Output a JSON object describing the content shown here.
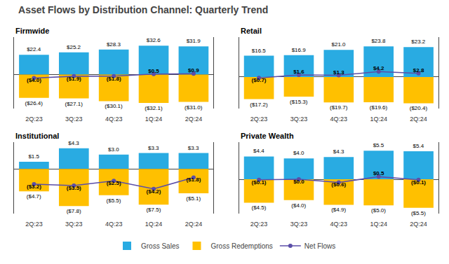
{
  "title": "Asset Flows by Distribution Channel: Quarterly Trend",
  "legend": "bottom",
  "chart_data": [
    {
      "type": "bar",
      "title": "Firmwide",
      "categories": [
        "2Q:23",
        "3Q:23",
        "4Q:23",
        "1Q:24",
        "2Q:24"
      ],
      "ylim": [
        -38.52,
        42.38
      ],
      "grid": false,
      "tick_labels": "x",
      "data_labels": true,
      "series": [
        {
          "name": "Gross Sales",
          "color": "#29ABE2",
          "values": [
            22.4,
            25.2,
            28.3,
            32.6,
            31.9
          ],
          "value_labels": [
            "$22.4",
            "$25.2",
            "$28.3",
            "$32.6",
            "$31.9"
          ]
        },
        {
          "name": "Gross Redemptions",
          "color": "#FFC000",
          "values": [
            -26.4,
            -27.1,
            -30.1,
            -32.1,
            -31.0
          ],
          "value_labels": [
            "($26.4)",
            "($27.1)",
            "($30.1)",
            "($32.1)",
            "($31.0)"
          ]
        },
        {
          "name": "Net Flows",
          "type": "line",
          "marker": "circle",
          "color": "#5B4EA8",
          "values": [
            -4.0,
            -1.9,
            -1.8,
            0.5,
            0.9
          ],
          "value_labels": [
            "($4.0)",
            "($1.9)",
            "($1.8)",
            "$0.5",
            "$0.9"
          ]
        }
      ]
    },
    {
      "type": "bar",
      "title": "Retail",
      "categories": [
        "2Q:23",
        "3Q:23",
        "4Q:23",
        "1Q:24",
        "2Q:24"
      ],
      "ylim": [
        -24.48,
        30.94
      ],
      "grid": false,
      "tick_labels": "x",
      "data_labels": true,
      "series": [
        {
          "name": "Gross Sales",
          "color": "#29ABE2",
          "values": [
            16.5,
            16.9,
            21.0,
            23.8,
            23.2
          ],
          "value_labels": [
            "$16.5",
            "$16.9",
            "$21.0",
            "$23.8",
            "$23.2"
          ]
        },
        {
          "name": "Gross Redemptions",
          "color": "#FFC000",
          "values": [
            -17.2,
            -15.3,
            -19.7,
            -19.6,
            -20.4
          ],
          "value_labels": [
            "($17.2)",
            "($15.3)",
            "($19.7)",
            "($19.6)",
            "($20.4)"
          ]
        },
        {
          "name": "Net Flows",
          "type": "line",
          "marker": "circle",
          "color": "#5B4EA8",
          "values": [
            -0.7,
            1.6,
            1.3,
            4.2,
            2.8
          ],
          "value_labels": [
            "($0.7)",
            "$1.6",
            "$1.3",
            "$4.2",
            "$2.8"
          ]
        }
      ]
    },
    {
      "type": "bar",
      "title": "Institutional",
      "categories": [
        "2Q:23",
        "3Q:23",
        "4Q:23",
        "1Q:24",
        "2Q:24"
      ],
      "ylim": [
        -9.36,
        5.59
      ],
      "grid": false,
      "tick_labels": "x",
      "data_labels": true,
      "series": [
        {
          "name": "Gross Sales",
          "color": "#29ABE2",
          "values": [
            1.5,
            4.3,
            3.0,
            3.3,
            3.3
          ],
          "value_labels": [
            "$1.5",
            "$4.3",
            "$3.0",
            "$3.3",
            "$3.3"
          ]
        },
        {
          "name": "Gross Redemptions",
          "color": "#FFC000",
          "values": [
            -4.7,
            -7.8,
            -5.5,
            -7.5,
            -5.1
          ],
          "value_labels": [
            "($4.7)",
            "($7.8)",
            "($5.5)",
            "($7.5)",
            "($5.1)"
          ]
        },
        {
          "name": "Net Flows",
          "type": "line",
          "marker": "circle",
          "color": "#5B4EA8",
          "values": [
            -3.2,
            -3.5,
            -2.5,
            -4.2,
            -1.8
          ],
          "value_labels": [
            "($3.2)",
            "($3.5)",
            "($2.5)",
            "($4.2)",
            "($1.8)"
          ]
        }
      ]
    },
    {
      "type": "bar",
      "title": "Private Wealth",
      "categories": [
        "2Q:23",
        "3Q:23",
        "4Q:23",
        "1Q:24",
        "2Q:24"
      ],
      "ylim": [
        -6.6,
        7.15
      ],
      "grid": false,
      "tick_labels": "x",
      "data_labels": true,
      "series": [
        {
          "name": "Gross Sales",
          "color": "#29ABE2",
          "values": [
            4.4,
            4.0,
            4.3,
            5.5,
            5.4
          ],
          "value_labels": [
            "$4.4",
            "$4.0",
            "$4.3",
            "$5.5",
            "$5.4"
          ]
        },
        {
          "name": "Gross Redemptions",
          "color": "#FFC000",
          "values": [
            -4.5,
            -4.0,
            -4.9,
            -5.0,
            -5.5
          ],
          "value_labels": [
            "($4.5)",
            "($4.0)",
            "($4.9)",
            "($5.0)",
            "($5.5)"
          ]
        },
        {
          "name": "Net Flows",
          "type": "line",
          "marker": "circle",
          "color": "#5B4EA8",
          "values": [
            -0.1,
            0.0,
            -0.6,
            0.5,
            -0.1
          ],
          "value_labels": [
            "($0.1)",
            "$0.0",
            "($0.6)",
            "$0.5",
            "($0.1)"
          ]
        }
      ]
    }
  ]
}
